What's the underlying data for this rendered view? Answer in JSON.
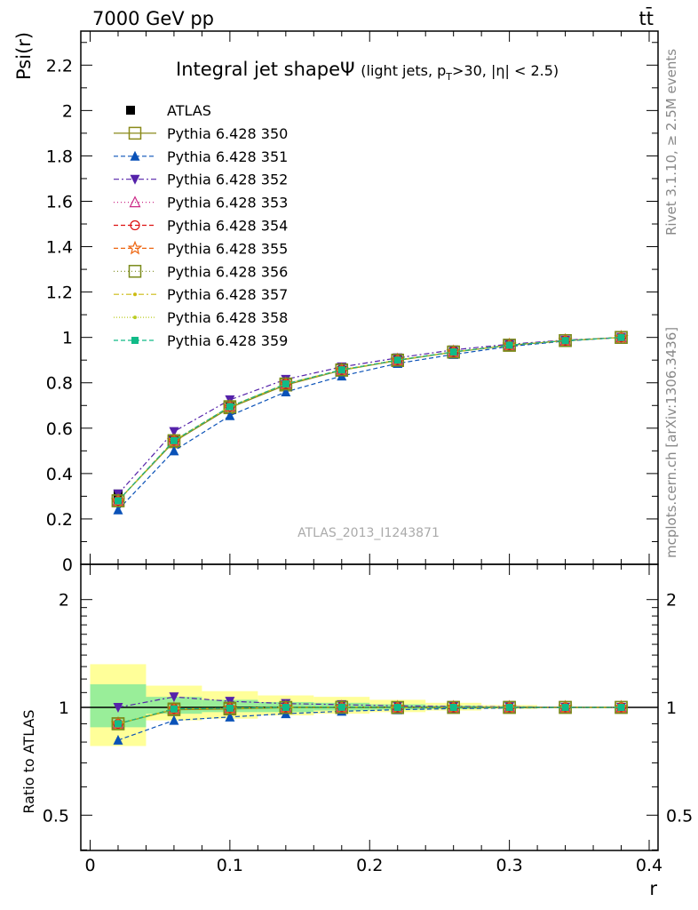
{
  "header": {
    "left": "7000 GeV pp",
    "right": "tt̄"
  },
  "side_text": {
    "rivet": "Rivet 3.1.10, ≥ 2.5M events",
    "mcplots": "mcplots.cern.ch [arXiv:1306.3436]"
  },
  "watermark": "ATLAS_2013_I1243871",
  "title": {
    "main": "Integral jet shape",
    "psi": "Ψ",
    "sub_pre": "(light jets, p",
    "sub_sub": "T",
    "sub_post": ">30, |η| < 2.5)"
  },
  "chart_data": [
    {
      "type": "line",
      "ylabel": "Psi(r)",
      "xlim": [
        -0.01,
        0.4
      ],
      "ylim": [
        0,
        2.35
      ],
      "x_ticks": [
        "0",
        "0.1",
        "0.2",
        "0.3",
        "0.4"
      ],
      "y_ticks": [
        "0",
        "0.2",
        "0.4",
        "0.6",
        "0.8",
        "1",
        "1.2",
        "1.4",
        "1.6",
        "1.8",
        "2",
        "2.2"
      ],
      "x": [
        0.02,
        0.06,
        0.1,
        0.14,
        0.18,
        0.22,
        0.26,
        0.3,
        0.34,
        0.38
      ],
      "reference": {
        "name": "ATLAS",
        "color": "#000000",
        "values": [
          0.31,
          0.55,
          0.7,
          0.79,
          0.855,
          0.9,
          0.935,
          0.965,
          0.985,
          1.0
        ]
      },
      "series": [
        {
          "name": "Pythia 6.428 350",
          "color": "#8a8a1a",
          "marker": "square-open",
          "dash": "",
          "values": [
            0.28,
            0.54,
            0.69,
            0.79,
            0.855,
            0.898,
            0.935,
            0.965,
            0.986,
            1.0
          ]
        },
        {
          "name": "Pythia 6.428 351",
          "color": "#0a52b8",
          "marker": "triangle-up",
          "dash": "5,3",
          "values": [
            0.24,
            0.5,
            0.655,
            0.76,
            0.83,
            0.885,
            0.925,
            0.96,
            0.984,
            1.0
          ]
        },
        {
          "name": "Pythia 6.428 352",
          "color": "#5522aa",
          "marker": "triangle-down",
          "dash": "6,3,2,3",
          "values": [
            0.31,
            0.585,
            0.725,
            0.815,
            0.87,
            0.91,
            0.945,
            0.97,
            0.988,
            1.0
          ]
        },
        {
          "name": "Pythia 6.428 353",
          "color": "#cc2a88",
          "marker": "triangle-open",
          "dash": "1,3",
          "values": [
            0.28,
            0.545,
            0.695,
            0.795,
            0.857,
            0.9,
            0.936,
            0.966,
            0.986,
            1.0
          ]
        },
        {
          "name": "Pythia 6.428 354",
          "color": "#dd1111",
          "marker": "circle-open",
          "dash": "5,3",
          "values": [
            0.28,
            0.545,
            0.695,
            0.795,
            0.857,
            0.9,
            0.936,
            0.966,
            0.986,
            1.0
          ]
        },
        {
          "name": "Pythia 6.428 355",
          "color": "#ee6611",
          "marker": "star-open",
          "dash": "5,3",
          "values": [
            0.28,
            0.545,
            0.695,
            0.795,
            0.857,
            0.9,
            0.936,
            0.966,
            0.986,
            1.0
          ]
        },
        {
          "name": "Pythia 6.428 356",
          "color": "#7a8a1a",
          "marker": "square-open",
          "dash": "1,3",
          "values": [
            0.28,
            0.545,
            0.695,
            0.795,
            0.857,
            0.9,
            0.936,
            0.966,
            0.986,
            1.0
          ]
        },
        {
          "name": "Pythia 6.428 357",
          "color": "#ccbb11",
          "marker": "dot",
          "dash": "6,3,2,3",
          "values": [
            0.28,
            0.545,
            0.695,
            0.795,
            0.857,
            0.9,
            0.936,
            0.966,
            0.986,
            1.0
          ]
        },
        {
          "name": "Pythia 6.428 358",
          "color": "#bbcc22",
          "marker": "dot",
          "dash": "1,2",
          "values": [
            0.28,
            0.545,
            0.695,
            0.795,
            0.857,
            0.9,
            0.936,
            0.966,
            0.986,
            1.0
          ]
        },
        {
          "name": "Pythia 6.428 359",
          "color": "#11bb88",
          "marker": "square-filled",
          "dash": "5,3",
          "values": [
            0.28,
            0.545,
            0.695,
            0.795,
            0.857,
            0.9,
            0.936,
            0.966,
            0.986,
            1.0
          ]
        }
      ]
    },
    {
      "type": "line",
      "xlabel": "r",
      "ylabel": "Ratio to ATLAS",
      "scale": "log",
      "xlim": [
        -0.01,
        0.4
      ],
      "ylim": [
        0.4,
        2.35
      ],
      "x_ticks": [
        "0",
        "0.1",
        "0.2",
        "0.3",
        "0.4"
      ],
      "y_ticks": [
        "0.5",
        "1",
        "2"
      ],
      "x": [
        0.02,
        0.06,
        0.1,
        0.14,
        0.18,
        0.22,
        0.26,
        0.3,
        0.34,
        0.38
      ],
      "bands": {
        "edges": [
          0.0,
          0.04,
          0.08,
          0.12,
          0.16,
          0.2,
          0.24,
          0.28,
          0.32
        ],
        "yellow": [
          [
            0.78,
            1.32
          ],
          [
            0.92,
            1.15
          ],
          [
            0.93,
            1.11
          ],
          [
            0.95,
            1.08
          ],
          [
            0.96,
            1.07
          ],
          [
            0.97,
            1.05
          ],
          [
            0.98,
            1.03
          ],
          [
            0.99,
            1.015
          ]
        ],
        "green": [
          [
            0.88,
            1.16
          ],
          [
            0.96,
            1.07
          ],
          [
            0.97,
            1.05
          ],
          [
            0.97,
            1.035
          ],
          [
            0.98,
            1.03
          ],
          [
            0.985,
            1.02
          ],
          [
            0.99,
            1.012
          ],
          [
            0.995,
            1.006
          ]
        ]
      },
      "series": [
        {
          "name": "Pythia 6.428 350",
          "values": [
            0.9,
            0.985,
            0.99,
            0.998,
            0.999,
            0.998,
            1.0,
            1.0,
            1.0,
            1.0
          ]
        },
        {
          "name": "Pythia 6.428 351",
          "values": [
            0.81,
            0.92,
            0.94,
            0.96,
            0.975,
            0.985,
            0.992,
            0.996,
            0.999,
            1.0
          ]
        },
        {
          "name": "Pythia 6.428 352",
          "values": [
            1.0,
            1.07,
            1.04,
            1.025,
            1.018,
            1.01,
            1.006,
            1.004,
            1.001,
            1.0
          ]
        },
        {
          "name": "Pythia 6.428 353",
          "values": [
            0.9,
            0.99,
            0.995,
            1.0,
            1.001,
            1.0,
            1.0,
            1.0,
            1.0,
            1.0
          ]
        },
        {
          "name": "Pythia 6.428 354",
          "values": [
            0.9,
            0.99,
            0.995,
            1.0,
            1.001,
            1.0,
            1.0,
            1.0,
            1.0,
            1.0
          ]
        },
        {
          "name": "Pythia 6.428 355",
          "values": [
            0.9,
            0.99,
            0.995,
            1.0,
            1.001,
            1.0,
            1.0,
            1.0,
            1.0,
            1.0
          ]
        },
        {
          "name": "Pythia 6.428 356",
          "values": [
            0.9,
            0.99,
            0.995,
            1.0,
            1.001,
            1.0,
            1.0,
            1.0,
            1.0,
            1.0
          ]
        },
        {
          "name": "Pythia 6.428 357",
          "values": [
            0.9,
            0.99,
            0.995,
            1.0,
            1.001,
            1.0,
            1.0,
            1.0,
            1.0,
            1.0
          ]
        },
        {
          "name": "Pythia 6.428 358",
          "values": [
            0.9,
            0.99,
            0.995,
            1.0,
            1.001,
            1.0,
            1.0,
            1.0,
            1.0,
            1.0
          ]
        },
        {
          "name": "Pythia 6.428 359",
          "values": [
            0.9,
            0.99,
            0.995,
            1.0,
            1.001,
            1.0,
            1.0,
            1.0,
            1.0,
            1.0
          ]
        }
      ]
    }
  ]
}
